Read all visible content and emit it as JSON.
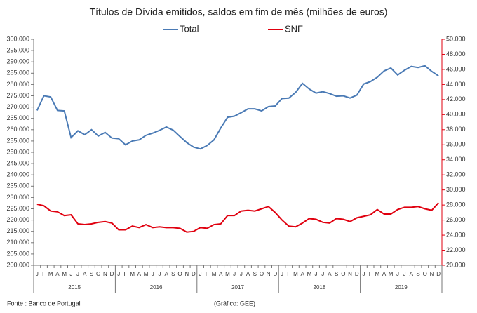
{
  "chart_data": {
    "type": "line",
    "title": "Títulos de Dívida emitidos, saldos em fim de mês  (milhões de euros)",
    "categories": [
      "J",
      "F",
      "M",
      "A",
      "M",
      "J",
      "J",
      "A",
      "S",
      "O",
      "N",
      "D",
      "J",
      "F",
      "M",
      "A",
      "M",
      "J",
      "J",
      "A",
      "S",
      "O",
      "N",
      "D",
      "J",
      "F",
      "M",
      "A",
      "M",
      "J",
      "J",
      "A",
      "S",
      "O",
      "N",
      "D",
      "J",
      "F",
      "M",
      "A",
      "M",
      "J",
      "J",
      "A",
      "S",
      "O",
      "N",
      "D",
      "J",
      "F",
      "M",
      "A",
      "M",
      "J",
      "J",
      "A",
      "S",
      "O",
      "N",
      "D"
    ],
    "year_labels": [
      "2015",
      "2016",
      "2017",
      "2018",
      "2019"
    ],
    "series": [
      {
        "name": "Total",
        "color": "#4a7ab5",
        "values": [
          268500,
          275000,
          274500,
          268500,
          268300,
          256500,
          259500,
          257800,
          260000,
          257200,
          258800,
          256300,
          256000,
          253300,
          255000,
          255500,
          257500,
          258500,
          259700,
          261200,
          259800,
          257000,
          254300,
          252300,
          251500,
          253000,
          255500,
          260800,
          265500,
          266000,
          267500,
          269200,
          269200,
          268300,
          270200,
          270500,
          273800,
          274000,
          276500,
          280500,
          278000,
          276200,
          276800,
          276000,
          274800,
          275000,
          274000,
          275300,
          280200,
          281300,
          283200,
          286000,
          287300,
          284200,
          286300,
          288000,
          287500,
          288300,
          285800,
          283800
        ]
      },
      {
        "name": "SNF",
        "color": "#e0000f",
        "axis": "y2",
        "values": [
          28100,
          27900,
          27200,
          27100,
          26600,
          26700,
          25500,
          25400,
          25500,
          25700,
          25800,
          25600,
          24700,
          24700,
          25200,
          25000,
          25400,
          25000,
          25100,
          25000,
          25000,
          24900,
          24400,
          24500,
          25000,
          24900,
          25400,
          25500,
          26600,
          26600,
          27200,
          27300,
          27200,
          27500,
          27800,
          27000,
          26000,
          25200,
          25100,
          25600,
          26200,
          26100,
          25700,
          25600,
          26200,
          26100,
          25800,
          26300,
          26500,
          26700,
          27400,
          26800,
          26800,
          27400,
          27700,
          27700,
          27800,
          27500,
          27300,
          28300
        ]
      }
    ],
    "ylim": [
      200000,
      300000
    ],
    "yticks": [
      {
        "value": 200000,
        "label": "200.000"
      },
      {
        "value": 205000,
        "label": "205.000"
      },
      {
        "value": 210000,
        "label": "210.000"
      },
      {
        "value": 215000,
        "label": "215.000"
      },
      {
        "value": 220000,
        "label": "220.000"
      },
      {
        "value": 225000,
        "label": "225.000"
      },
      {
        "value": 230000,
        "label": "230.000"
      },
      {
        "value": 235000,
        "label": "235.000"
      },
      {
        "value": 240000,
        "label": "240.000"
      },
      {
        "value": 245000,
        "label": "245.000"
      },
      {
        "value": 250000,
        "label": "250.000"
      },
      {
        "value": 255000,
        "label": "255.000"
      },
      {
        "value": 260000,
        "label": "260.000"
      },
      {
        "value": 265000,
        "label": "265.000"
      },
      {
        "value": 270000,
        "label": "270.000"
      },
      {
        "value": 275000,
        "label": "275.000"
      },
      {
        "value": 280000,
        "label": "280.000"
      },
      {
        "value": 285000,
        "label": "285.000"
      },
      {
        "value": 290000,
        "label": "290.000"
      },
      {
        "value": 295000,
        "label": "295.000"
      },
      {
        "value": 300000,
        "label": "300.000"
      }
    ],
    "y2lim": [
      20000,
      50000
    ],
    "y2ticks": [
      {
        "value": 20000,
        "label": "20.000"
      },
      {
        "value": 22000,
        "label": "22.000"
      },
      {
        "value": 24000,
        "label": "24.000"
      },
      {
        "value": 26000,
        "label": "26.000"
      },
      {
        "value": 28000,
        "label": "28.000"
      },
      {
        "value": 30000,
        "label": "30.000"
      },
      {
        "value": 32000,
        "label": "32.000"
      },
      {
        "value": 34000,
        "label": "34.000"
      },
      {
        "value": 36000,
        "label": "36.000"
      },
      {
        "value": 38000,
        "label": "38.000"
      },
      {
        "value": 40000,
        "label": "40.000"
      },
      {
        "value": 42000,
        "label": "42.000"
      },
      {
        "value": 44000,
        "label": "44.000"
      },
      {
        "value": 46000,
        "label": "46.000"
      },
      {
        "value": 48000,
        "label": "48.000"
      },
      {
        "value": 50000,
        "label": "50.000"
      }
    ],
    "y2_axis_color": "#e0000f",
    "source": "Fonte : Banco de Portugal",
    "credit": "(Gráfico: GEE)"
  }
}
